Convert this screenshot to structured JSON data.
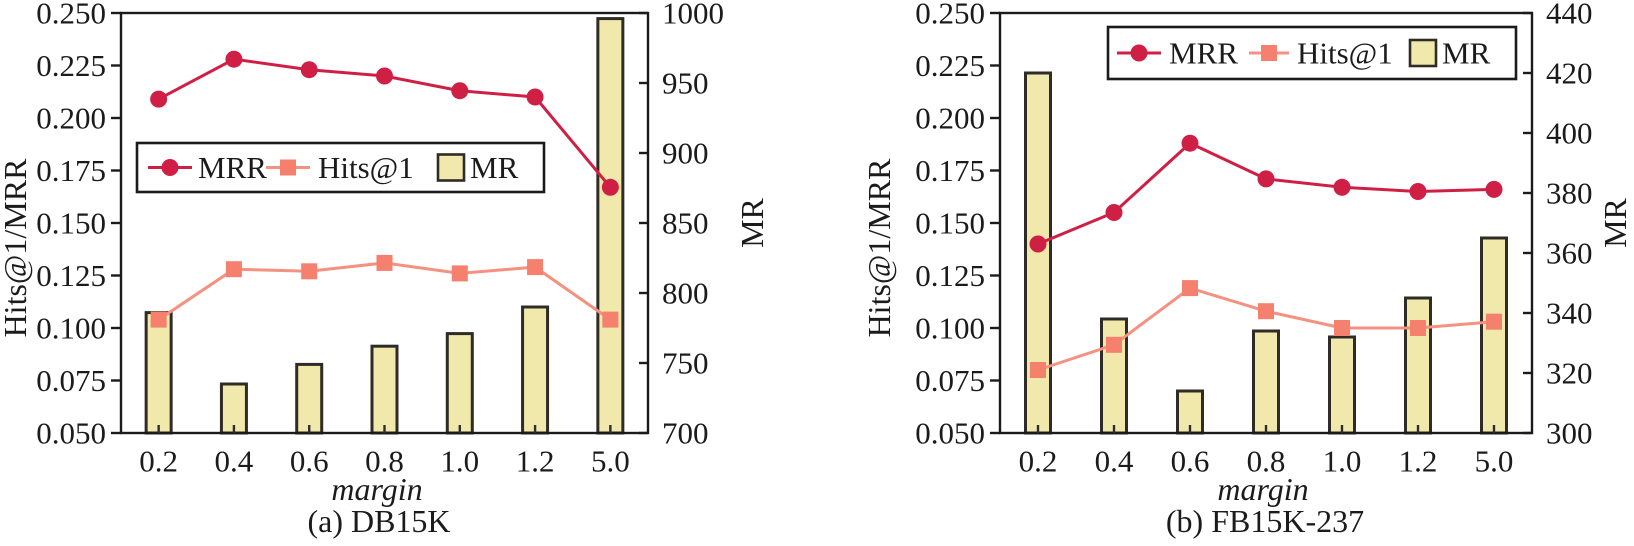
{
  "style": {
    "frame_color": "#1b1b1b",
    "tick_color": "#2e2e2e",
    "text_color": "#1b1b1b",
    "legend_bg": "#ffffff",
    "legend_border": "#1b1b1b"
  },
  "chart_data": [
    {
      "type": "bar+line-dual-axis",
      "caption": "(a) DB15K",
      "xlabel": "margin",
      "ylabel_left": "Hits@1/MRR",
      "ylabel_right": "MR",
      "categories": [
        "0.2",
        "0.4",
        "0.6",
        "0.8",
        "1.0",
        "1.2",
        "5.0"
      ],
      "axes": {
        "left": {
          "min": 0.05,
          "max": 0.25,
          "tick_labels": [
            "0.050",
            "0.075",
            "0.100",
            "0.125",
            "0.150",
            "0.175",
            "0.200",
            "0.225",
            "0.250"
          ]
        },
        "right": {
          "min": 700,
          "max": 1000,
          "tick_labels": [
            "700",
            "750",
            "800",
            "850",
            "900",
            "950",
            "1000"
          ]
        }
      },
      "series": [
        {
          "name": "MRR",
          "type": "line",
          "marker": "circle",
          "axis": "left",
          "color": "#d01f45",
          "marker_color": "#d01f45",
          "values": [
            0.209,
            0.228,
            0.223,
            0.22,
            0.213,
            0.21,
            0.167
          ]
        },
        {
          "name": "Hits@1",
          "type": "line",
          "marker": "square",
          "axis": "left",
          "color": "#f59180",
          "marker_color": "#f4806d",
          "values": [
            0.104,
            0.128,
            0.127,
            0.131,
            0.126,
            0.129,
            0.104
          ]
        },
        {
          "name": "MR",
          "type": "bar",
          "axis": "right",
          "color": "#f0e9ab",
          "edge_color": "#2f2b26",
          "values": [
            786,
            735,
            749,
            762,
            771,
            790,
            996
          ]
        }
      ],
      "legend": {
        "position": "center-left",
        "entries": [
          "MRR",
          "Hits@1",
          "MR"
        ]
      }
    },
    {
      "type": "bar+line-dual-axis",
      "caption": "(b) FB15K-237",
      "xlabel": "margin",
      "ylabel_left": "Hits@1/MRR",
      "ylabel_right": "MR",
      "categories": [
        "0.2",
        "0.4",
        "0.6",
        "0.8",
        "1.0",
        "1.2",
        "5.0"
      ],
      "axes": {
        "left": {
          "min": 0.05,
          "max": 0.25,
          "tick_labels": [
            "0.050",
            "0.075",
            "0.100",
            "0.125",
            "0.150",
            "0.175",
            "0.200",
            "0.225",
            "0.250"
          ]
        },
        "right": {
          "min": 300,
          "max": 440,
          "tick_labels": [
            "300",
            "320",
            "340",
            "360",
            "380",
            "400",
            "420",
            "440"
          ]
        }
      },
      "series": [
        {
          "name": "MRR",
          "type": "line",
          "marker": "circle",
          "axis": "left",
          "color": "#d01f45",
          "marker_color": "#d01f45",
          "values": [
            0.14,
            0.155,
            0.188,
            0.171,
            0.167,
            0.165,
            0.166
          ]
        },
        {
          "name": "Hits@1",
          "type": "line",
          "marker": "square",
          "axis": "left",
          "color": "#f59180",
          "marker_color": "#f4806d",
          "values": [
            0.08,
            0.092,
            0.119,
            0.108,
            0.1,
            0.1,
            0.103
          ]
        },
        {
          "name": "MR",
          "type": "bar",
          "axis": "right",
          "color": "#f0e9ab",
          "edge_color": "#2f2b26",
          "values": [
            420,
            338,
            314,
            334,
            332,
            345,
            365
          ]
        }
      ],
      "legend": {
        "position": "top-right",
        "entries": [
          "MRR",
          "Hits@1",
          "MR"
        ]
      }
    }
  ]
}
